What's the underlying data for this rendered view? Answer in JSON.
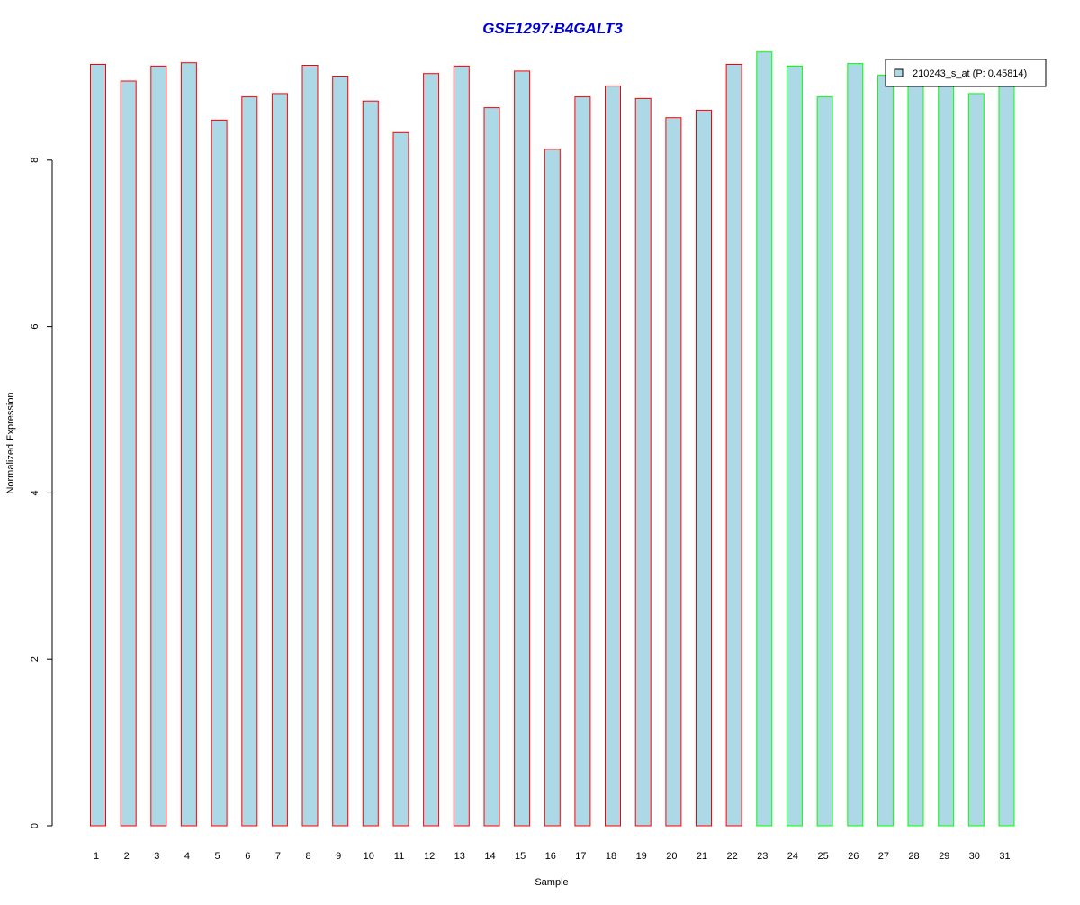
{
  "chart_data": {
    "type": "bar",
    "title": "GSE1297:B4GALT3",
    "xlabel": "Sample",
    "ylabel": "Normalized Expression",
    "categories": [
      "1",
      "2",
      "3",
      "4",
      "5",
      "6",
      "7",
      "8",
      "9",
      "10",
      "11",
      "12",
      "13",
      "14",
      "15",
      "16",
      "17",
      "18",
      "19",
      "20",
      "21",
      "22",
      "23",
      "24",
      "25",
      "26",
      "27",
      "28",
      "29",
      "30",
      "31"
    ],
    "series": [
      {
        "name": "210243_s_at (P: 0.45814)",
        "values": [
          9.15,
          8.95,
          9.13,
          9.17,
          8.48,
          8.76,
          8.8,
          9.14,
          9.01,
          8.71,
          8.33,
          9.04,
          9.13,
          8.63,
          9.07,
          8.13,
          8.76,
          8.89,
          8.74,
          8.51,
          8.6,
          9.15,
          9.3,
          9.13,
          8.76,
          9.16,
          9.02,
          8.89,
          8.97,
          8.8,
          8.97
        ]
      }
    ],
    "groups": [
      {
        "border_color": "#ff0000",
        "samples": "1-22"
      },
      {
        "border_color": "#00ff00",
        "samples": "23-31"
      }
    ],
    "group_split_index": 22,
    "fill_color": "#add8e6",
    "title_color": "#0000cd",
    "ylim": [
      0,
      9.3
    ],
    "yticks": [
      0,
      2,
      4,
      6,
      8
    ],
    "grid": false,
    "legend_position": "top-right"
  }
}
